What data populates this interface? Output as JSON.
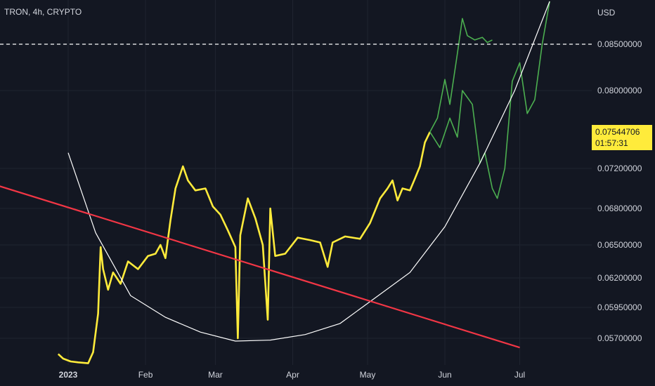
{
  "header": {
    "title": "TRON, 4h, CRYPTO"
  },
  "axis": {
    "currency": "USD"
  },
  "price_badge": {
    "price": "0.07544706",
    "countdown": "01:57:31"
  },
  "colors": {
    "background": "#131722",
    "grid": "#1f2430",
    "price_line": "#ffeb3b",
    "projection_line": "#4caf50",
    "trend_line": "#f23645",
    "curve_line": "#ffffff",
    "dashed_level": "#ffffff"
  },
  "chart_data": {
    "type": "line",
    "symbol": "TRON",
    "interval": "4h",
    "exchange": "CRYPTO",
    "x_ticks": [
      "2023",
      "Feb",
      "Mar",
      "Apr",
      "May",
      "Jun",
      "Jul"
    ],
    "y_ticks": [
      "0.08500000",
      "0.08000000",
      "0.07200000",
      "0.06800000",
      "0.06500000",
      "0.06200000",
      "0.05950000",
      "0.05700000"
    ],
    "dashed_level": 0.085,
    "last_price": 0.07544706,
    "grid": true,
    "series": [
      {
        "color": "#ffeb3b",
        "points": [
          [
            "2022-12-28",
            0.0553
          ],
          [
            "2022-12-30",
            0.0548
          ],
          [
            "2023-01-02",
            0.0545
          ],
          [
            "2023-01-05",
            0.0544
          ],
          [
            "2023-01-09",
            0.0543
          ],
          [
            "2023-01-11",
            0.0555
          ],
          [
            "2023-01-13",
            0.059
          ],
          [
            "2023-01-14",
            0.0648
          ],
          [
            "2023-01-15",
            0.0628
          ],
          [
            "2023-01-17",
            0.061
          ],
          [
            "2023-01-19",
            0.0625
          ],
          [
            "2023-01-22",
            0.0615
          ],
          [
            "2023-01-25",
            0.0635
          ],
          [
            "2023-01-29",
            0.0628
          ],
          [
            "2023-02-02",
            0.064
          ],
          [
            "2023-02-05",
            0.0642
          ],
          [
            "2023-02-07",
            0.065
          ],
          [
            "2023-02-09",
            0.0638
          ],
          [
            "2023-02-11",
            0.067
          ],
          [
            "2023-02-13",
            0.07
          ],
          [
            "2023-02-16",
            0.0722
          ],
          [
            "2023-02-18",
            0.0708
          ],
          [
            "2023-02-21",
            0.0698
          ],
          [
            "2023-02-25",
            0.07
          ],
          [
            "2023-02-28",
            0.0682
          ],
          [
            "2023-03-03",
            0.0675
          ],
          [
            "2023-03-06",
            0.0662
          ],
          [
            "2023-03-09",
            0.0648
          ],
          [
            "2023-03-10",
            0.057
          ],
          [
            "2023-03-11",
            0.0658
          ],
          [
            "2023-03-14",
            0.069
          ],
          [
            "2023-03-17",
            0.0672
          ],
          [
            "2023-03-20",
            0.065
          ],
          [
            "2023-03-22",
            0.0585
          ],
          [
            "2023-03-23",
            0.068
          ],
          [
            "2023-03-25",
            0.064
          ],
          [
            "2023-03-29",
            0.0642
          ],
          [
            "2023-04-03",
            0.0656
          ],
          [
            "2023-04-08",
            0.0654
          ],
          [
            "2023-04-12",
            0.0652
          ],
          [
            "2023-04-15",
            0.063
          ],
          [
            "2023-04-17",
            0.0652
          ],
          [
            "2023-04-22",
            0.0657
          ],
          [
            "2023-04-28",
            0.0655
          ],
          [
            "2023-05-02",
            0.0668
          ],
          [
            "2023-05-06",
            0.069
          ],
          [
            "2023-05-09",
            0.07
          ],
          [
            "2023-05-11",
            0.0708
          ],
          [
            "2023-05-13",
            0.0688
          ],
          [
            "2023-05-15",
            0.07
          ],
          [
            "2023-05-18",
            0.0698
          ],
          [
            "2023-05-20",
            0.071
          ],
          [
            "2023-05-22",
            0.0722
          ],
          [
            "2023-05-24",
            0.0745
          ],
          [
            "2023-05-26",
            0.0755
          ]
        ]
      },
      {
        "color": "#4caf50",
        "points": [
          [
            "2023-05-26",
            0.0755
          ],
          [
            "2023-05-29",
            0.077
          ],
          [
            "2023-06-01",
            0.0812
          ],
          [
            "2023-06-03",
            0.0785
          ],
          [
            "2023-06-06",
            0.084
          ],
          [
            "2023-06-08",
            0.088
          ],
          [
            "2023-06-10",
            0.086
          ],
          [
            "2023-06-13",
            0.0855
          ],
          [
            "2023-06-16",
            0.0858
          ],
          [
            "2023-06-18",
            0.0852
          ],
          [
            "2023-06-20",
            0.0855
          ]
        ]
      },
      {
        "color": "#4caf50",
        "points": [
          [
            "2023-05-26",
            0.0755
          ],
          [
            "2023-05-30",
            0.074
          ],
          [
            "2023-06-03",
            0.077
          ],
          [
            "2023-06-06",
            0.075
          ],
          [
            "2023-06-08",
            0.08
          ],
          [
            "2023-06-12",
            0.0785
          ],
          [
            "2023-06-15",
            0.0725
          ],
          [
            "2023-06-17",
            0.0735
          ],
          [
            "2023-06-20",
            0.07
          ],
          [
            "2023-06-22",
            0.069
          ],
          [
            "2023-06-25",
            0.072
          ],
          [
            "2023-06-28",
            0.081
          ],
          [
            "2023-07-01",
            0.083
          ],
          [
            "2023-07-04",
            0.0775
          ],
          [
            "2023-07-07",
            0.079
          ],
          [
            "2023-07-10",
            0.085
          ],
          [
            "2023-07-13",
            0.09
          ]
        ]
      }
    ],
    "trend_line": {
      "color": "#f23645",
      "points": [
        [
          "2022-12-01",
          0.0705
        ],
        [
          "2023-07-01",
          0.056
        ]
      ]
    },
    "curve": {
      "color": "#ffffff",
      "points": [
        [
          "2023-01-01",
          0.0735
        ],
        [
          "2023-01-12",
          0.066
        ],
        [
          "2023-01-26",
          0.0605
        ],
        [
          "2023-02-09",
          0.0587
        ],
        [
          "2023-02-23",
          0.0575
        ],
        [
          "2023-03-09",
          0.0567
        ],
        [
          "2023-03-23",
          0.0568
        ],
        [
          "2023-04-06",
          0.0573
        ],
        [
          "2023-04-20",
          0.0582
        ],
        [
          "2023-05-04",
          0.0603
        ],
        [
          "2023-05-18",
          0.0625
        ],
        [
          "2023-06-01",
          0.0665
        ],
        [
          "2023-06-15",
          0.0725
        ],
        [
          "2023-06-29",
          0.08
        ],
        [
          "2023-07-13",
          0.09
        ]
      ]
    }
  }
}
